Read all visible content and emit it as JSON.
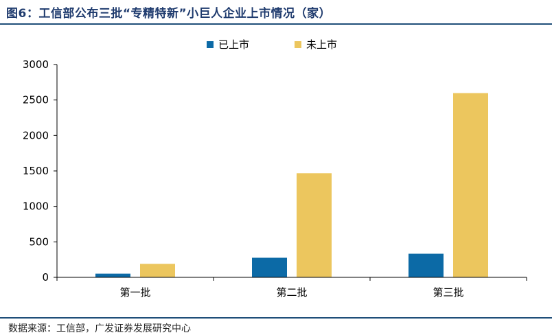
{
  "figure": {
    "title": "图6：工信部公布三批“专精特新”小巨人企业上市情况（家）",
    "source": "数据来源：工信部，广发证券发展研究中心"
  },
  "colors": {
    "listed": "#0c6aa6",
    "unlisted": "#ecc65e",
    "axis": "#000000",
    "rule": "#1f4e79"
  },
  "chart_data": {
    "type": "bar",
    "title": "",
    "xlabel": "",
    "ylabel": "",
    "categories": [
      "第一批",
      "第二批",
      "第三批"
    ],
    "series": [
      {
        "name": "已上市",
        "values": [
          52,
          276,
          333
        ]
      },
      {
        "name": "未上市",
        "values": [
          190,
          1468,
          2597
        ]
      }
    ],
    "ylim": [
      0,
      3000
    ],
    "yticks": [
      0,
      500,
      1000,
      1500,
      2000,
      2500,
      3000
    ],
    "grid": false,
    "legend": "top-center"
  }
}
